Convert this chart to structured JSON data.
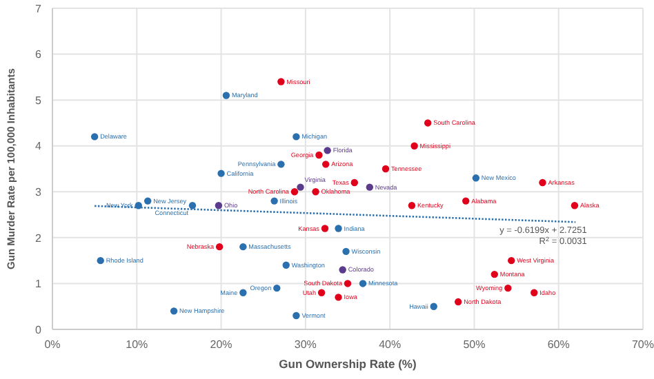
{
  "chart_data": {
    "type": "scatter",
    "xlabel": "Gun Ownership Rate (%)",
    "ylabel": "Gun Murder Rate per 100,000 Inhabitants",
    "xlim": [
      0,
      70
    ],
    "xticks": [
      {
        "value": 0,
        "label": "0%"
      },
      {
        "value": 10,
        "label": "10%"
      },
      {
        "value": 20,
        "label": "20%"
      },
      {
        "value": 30,
        "label": "30%"
      },
      {
        "value": 40,
        "label": "40%"
      },
      {
        "value": 50,
        "label": "50%"
      },
      {
        "value": 60,
        "label": "60%"
      },
      {
        "value": 70,
        "label": "70%"
      }
    ],
    "ylim": [
      0,
      7
    ],
    "yticks": [
      0,
      1,
      2,
      3,
      4,
      5,
      6,
      7
    ],
    "grid": true,
    "marker": "circle",
    "series": [
      {
        "color": "#e0001b",
        "x": [
          27.1,
          31.6,
          32.4,
          44.5,
          42.9,
          39.5,
          35.8,
          58.1,
          28.7,
          31.2,
          42.6,
          49.0,
          61.9,
          32.3,
          35.0,
          33.9,
          31.9,
          48.1,
          54.0,
          57.1,
          52.4,
          54.4,
          19.8
        ],
        "values": [
          5.4,
          3.8,
          3.6,
          4.5,
          4.0,
          3.5,
          3.2,
          3.2,
          3.0,
          3.0,
          2.7,
          2.8,
          2.7,
          2.2,
          1.0,
          0.7,
          0.8,
          0.6,
          0.9,
          0.8,
          1.2,
          1.5,
          1.8
        ]
      },
      {
        "color": "#2a6fae",
        "x": [
          20.6,
          5.0,
          28.9,
          27.1,
          20.0,
          50.2,
          33.9,
          34.8,
          36.8,
          45.2,
          11.3,
          10.2,
          16.6,
          26.3,
          22.6,
          5.7,
          27.7,
          26.6,
          22.6,
          14.4,
          28.9
        ],
        "values": [
          5.1,
          4.2,
          4.2,
          3.6,
          3.4,
          3.3,
          2.2,
          1.7,
          1.0,
          0.5,
          2.8,
          2.7,
          2.7,
          2.8,
          1.8,
          1.5,
          1.4,
          0.9,
          0.8,
          0.4,
          0.3
        ]
      },
      {
        "color": "#5b3b8c",
        "x": [
          32.6,
          29.4,
          37.6,
          34.4,
          19.7
        ],
        "values": [
          3.9,
          3.1,
          3.1,
          1.3,
          2.7
        ]
      },
      {
        "type": "line",
        "color": "#2a6fae",
        "line_style": "dotted",
        "marker": "none",
        "x": [
          5,
          62
        ],
        "values": [
          2.69,
          2.34
        ]
      }
    ],
    "annotations": [
      {
        "text": "Missouri",
        "x": 27.1,
        "y": 5.4
      },
      {
        "text": "Georgia",
        "x": 31.6,
        "y": 3.8
      },
      {
        "text": "Arizona",
        "x": 32.4,
        "y": 3.6
      },
      {
        "text": "South Carolina",
        "x": 44.5,
        "y": 4.5
      },
      {
        "text": "Mississippi",
        "x": 42.9,
        "y": 4.0
      },
      {
        "text": "Tennessee",
        "x": 39.5,
        "y": 3.5
      },
      {
        "text": "Texas",
        "x": 35.8,
        "y": 3.2
      },
      {
        "text": "Arkansas",
        "x": 58.1,
        "y": 3.2
      },
      {
        "text": "North Carolina",
        "x": 28.7,
        "y": 3.0
      },
      {
        "text": "Oklahoma",
        "x": 31.2,
        "y": 3.0
      },
      {
        "text": "Kentucky",
        "x": 42.6,
        "y": 2.7
      },
      {
        "text": "Alabama",
        "x": 49.0,
        "y": 2.8
      },
      {
        "text": "Alaska",
        "x": 61.9,
        "y": 2.7
      },
      {
        "text": "Kansas",
        "x": 32.3,
        "y": 2.2
      },
      {
        "text": "South Dakota",
        "x": 35.0,
        "y": 1.0
      },
      {
        "text": "Iowa",
        "x": 33.9,
        "y": 0.7
      },
      {
        "text": "Utah",
        "x": 31.9,
        "y": 0.8
      },
      {
        "text": "North Dakota",
        "x": 48.1,
        "y": 0.6
      },
      {
        "text": "Wyoming",
        "x": 54.0,
        "y": 0.9
      },
      {
        "text": "Idaho",
        "x": 57.1,
        "y": 0.8
      },
      {
        "text": "Montana",
        "x": 52.4,
        "y": 1.2
      },
      {
        "text": "West Virginia",
        "x": 54.4,
        "y": 1.5
      },
      {
        "text": "Nebraska",
        "x": 19.8,
        "y": 1.8
      },
      {
        "text": "Maryland",
        "x": 20.6,
        "y": 5.1
      },
      {
        "text": "Delaware",
        "x": 5.0,
        "y": 4.2
      },
      {
        "text": "Michigan",
        "x": 28.9,
        "y": 4.2
      },
      {
        "text": "Pennsylvania",
        "x": 27.1,
        "y": 3.6
      },
      {
        "text": "California",
        "x": 20.0,
        "y": 3.4
      },
      {
        "text": "New Mexico",
        "x": 50.2,
        "y": 3.3
      },
      {
        "text": "Indiana",
        "x": 33.9,
        "y": 2.2
      },
      {
        "text": "Wisconsin",
        "x": 34.8,
        "y": 1.7
      },
      {
        "text": "Minnesota",
        "x": 36.8,
        "y": 1.0
      },
      {
        "text": "Hawaii",
        "x": 45.2,
        "y": 0.5
      },
      {
        "text": "New Jersey",
        "x": 11.3,
        "y": 2.8
      },
      {
        "text": "New York",
        "x": 10.2,
        "y": 2.7
      },
      {
        "text": "Connecticut",
        "x": 16.6,
        "y": 2.7
      },
      {
        "text": "Illinois",
        "x": 26.3,
        "y": 2.8
      },
      {
        "text": "Massachusetts",
        "x": 22.6,
        "y": 1.8
      },
      {
        "text": "Rhode Island",
        "x": 5.7,
        "y": 1.5
      },
      {
        "text": "Washington",
        "x": 27.7,
        "y": 1.4
      },
      {
        "text": "Oregon",
        "x": 26.6,
        "y": 0.9
      },
      {
        "text": "Maine",
        "x": 22.6,
        "y": 0.8
      },
      {
        "text": "New Hampshire",
        "x": 14.4,
        "y": 0.4
      },
      {
        "text": "Vermont",
        "x": 28.9,
        "y": 0.3
      },
      {
        "text": "Florida",
        "x": 32.6,
        "y": 3.9
      },
      {
        "text": "Virginia",
        "x": 29.4,
        "y": 3.1
      },
      {
        "text": "Nevada",
        "x": 37.6,
        "y": 3.1
      },
      {
        "text": "Colorado",
        "x": 34.4,
        "y": 1.3
      },
      {
        "text": "Ohio",
        "x": 19.7,
        "y": 2.7
      },
      "y = -0.6199x + 2.7251",
      "R$^{2}$ = 0.0031"
    ]
  }
}
